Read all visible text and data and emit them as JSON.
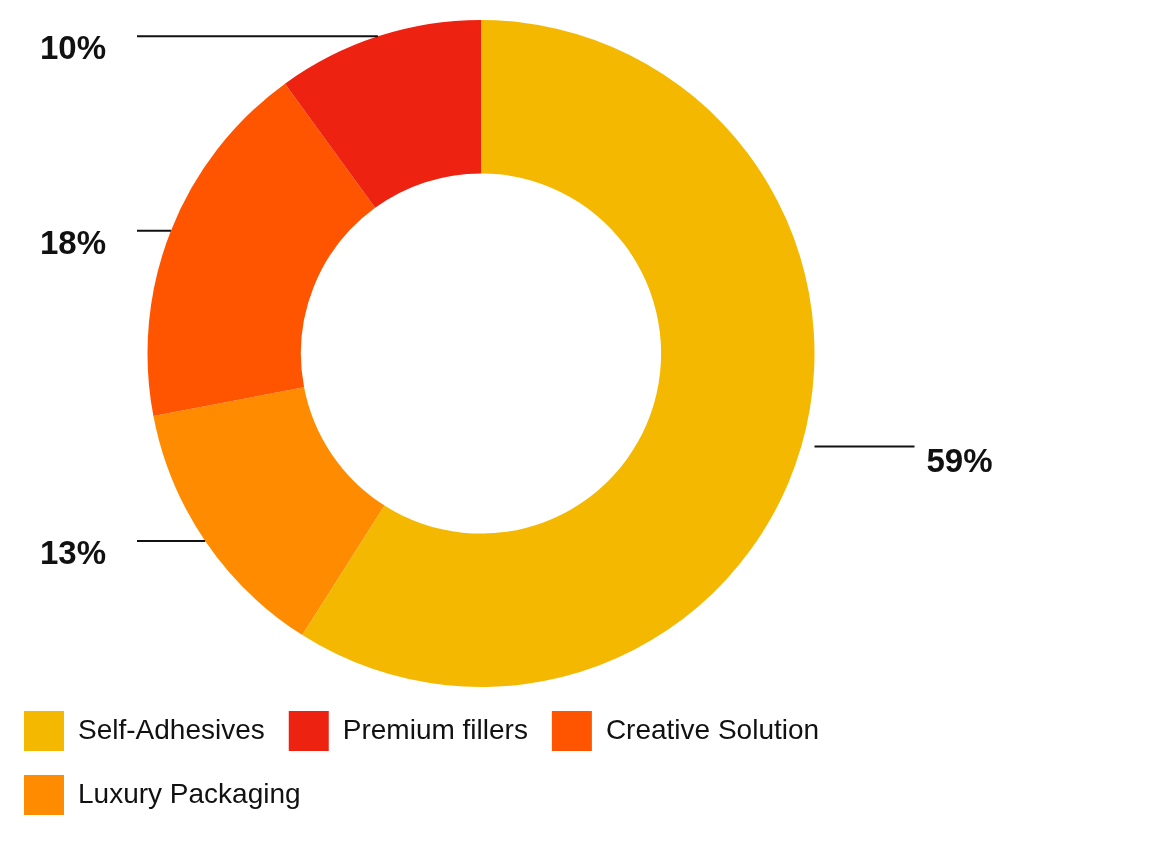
{
  "chart_data": {
    "type": "donut",
    "categories": [
      "Self-Adhesives",
      "Premium fillers",
      "Creative Solution",
      "Luxury Packaging"
    ],
    "values": [
      59,
      10,
      18,
      13
    ],
    "colors": [
      "#f5b800",
      "#ee2211",
      "#ff5500",
      "#ff8c00"
    ],
    "value_labels": [
      "59%",
      "10%",
      "18%",
      "13%"
    ],
    "legend": "bottom"
  }
}
